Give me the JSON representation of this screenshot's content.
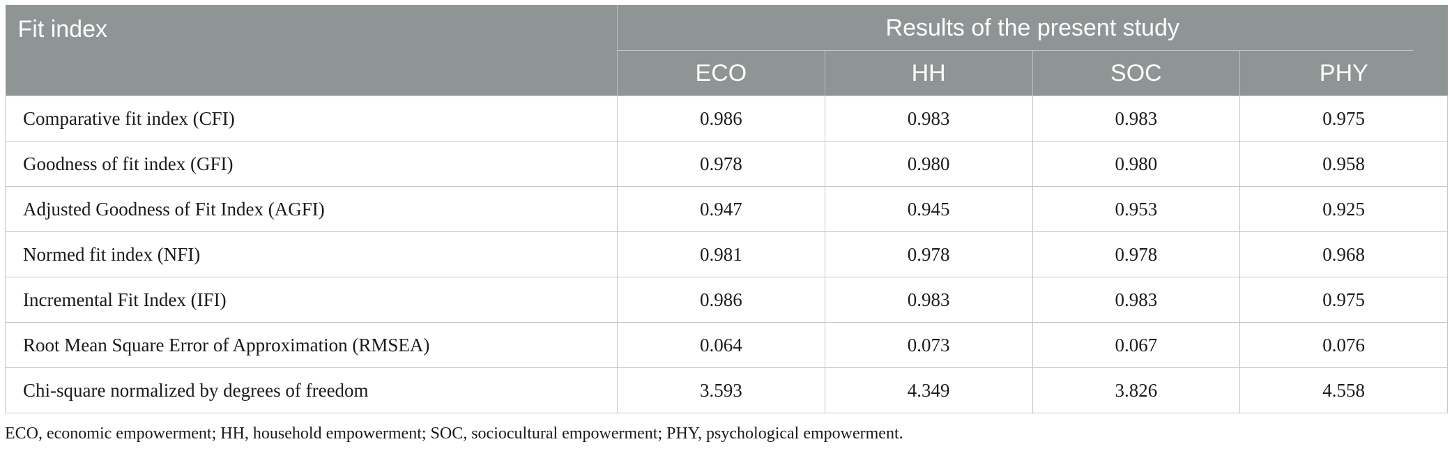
{
  "table": {
    "header": {
      "label_column": "Fit index",
      "group_title": "Results of the present study",
      "columns": [
        "ECO",
        "HH",
        "SOC",
        "PHY"
      ]
    },
    "rows": [
      {
        "label": "Comparative fit index (CFI)",
        "values": [
          "0.986",
          "0.983",
          "0.983",
          "0.975"
        ]
      },
      {
        "label": "Goodness of fit index (GFI)",
        "values": [
          "0.978",
          "0.980",
          "0.980",
          "0.958"
        ]
      },
      {
        "label": "Adjusted Goodness of Fit Index (AGFI)",
        "values": [
          "0.947",
          "0.945",
          "0.953",
          "0.925"
        ]
      },
      {
        "label": "Normed fit index (NFI)",
        "values": [
          "0.981",
          "0.978",
          "0.978",
          "0.968"
        ]
      },
      {
        "label": "Incremental Fit Index (IFI)",
        "values": [
          "0.986",
          "0.983",
          "0.983",
          "0.975"
        ]
      },
      {
        "label": "Root Mean Square Error of Approximation (RMSEA)",
        "values": [
          "0.064",
          "0.073",
          "0.067",
          "0.076"
        ]
      },
      {
        "label": "Chi-square normalized by degrees of freedom",
        "values": [
          "3.593",
          "4.349",
          "3.826",
          "4.558"
        ]
      }
    ],
    "footnote": "ECO, economic empowerment; HH, household empowerment; SOC, sociocultural empowerment; PHY, psychological empowerment."
  },
  "colors": {
    "header_background": "#8f9595",
    "header_text": "#ffffff",
    "grid_line": "#c8c8c8"
  }
}
